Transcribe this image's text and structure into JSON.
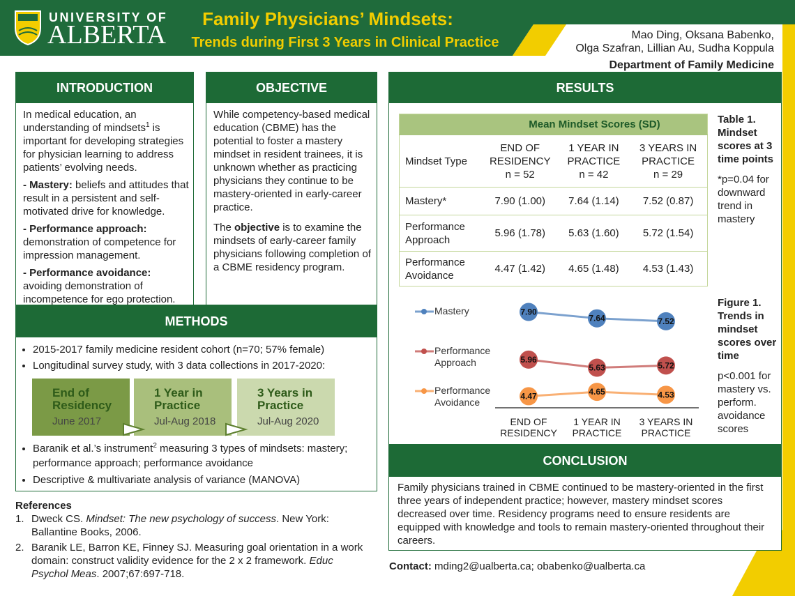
{
  "header": {
    "university": "UNIVERSITY OF",
    "name": "ALBERTA",
    "title": "Family Physicians’ Mindsets:",
    "subtitle": "Trends during First 3 Years in Clinical Practice",
    "authors": [
      "Mao Ding, Oksana Babenko,",
      "Olga Szafran, Lillian Au, Sudha Koppula"
    ],
    "department": "Department of Family Medicine"
  },
  "introduction": {
    "heading": "INTRODUCTION",
    "lead": {
      "before": "In medical education, an understanding of mindsets",
      "sup": "1",
      "after": " is important for developing strategies for physician learning to address patients’ evolving needs."
    },
    "items": [
      {
        "term": "- Mastery:",
        "text": "beliefs and attitudes that result in a persistent and self-motivated drive for knowledge."
      },
      {
        "term": "- Performance approach:",
        "text": "demonstration of competence for impression management."
      },
      {
        "term": "- Performance avoidance:",
        "text": "avoiding demonstration of incompetence for ego protection."
      }
    ]
  },
  "objective": {
    "heading": "OBJECTIVE",
    "paragraph": "While competency-based medical education (CBME) has the potential to foster a mastery mindset in resident trainees, it is unknown whether as practicing physicians they continue to be mastery-oriented in early-career practice.",
    "aim": {
      "before": "The ",
      "bold": "objective",
      "after": " is to examine the mindsets of early-career family physicians following completion of a CBME residency program."
    }
  },
  "methods": {
    "heading": "METHODS",
    "bullets": [
      "2015-2017 family medicine resident cohort (n=70; 57% female)",
      "Longitudinal survey study, with 3 data collections in 2017-2020:"
    ],
    "timeline": [
      {
        "label": "End of Residency",
        "date": "June 2017"
      },
      {
        "label": "1 Year in Practice",
        "date": "Jul-Aug 2018"
      },
      {
        "label": "3 Years in Practice",
        "date": "Jul-Aug 2020"
      }
    ],
    "instrument": {
      "before": "Baranik et al.’s instrument",
      "sup": "2",
      "after": " measuring 3 types of mindsets: mastery; performance approach; performance avoidance"
    },
    "analysis": "Descriptive & multivariate analysis of variance (MANOVA)"
  },
  "references": {
    "heading": "References",
    "items": [
      {
        "number": "1.",
        "authors": "Dweck CS. ",
        "title": "Mindset: The new psychology of success",
        "rest": ". New York: Ballantine Books, 2006."
      },
      {
        "number": "2.",
        "authors": "Baranik LE, Barron KE, Finney SJ. Measuring goal orientation in a work domain: construct validity evidence for the 2 x 2 framework. ",
        "title": "Educ Psychol Meas",
        "rest": ". 2007;67:697-718."
      }
    ]
  },
  "results": {
    "heading": "RESULTS",
    "table": {
      "group_header": "Mean Mindset Scores (SD)",
      "first_column": "Mindset Type",
      "columns": [
        {
          "name": "END OF RESIDENCY",
          "n": "n = 52"
        },
        {
          "name": "1 YEAR IN PRACTICE",
          "n": "n = 42"
        },
        {
          "name": "3 YEARS IN PRACTICE",
          "n": "n = 29"
        }
      ],
      "rows": [
        [
          "Mastery*",
          "7.90 (1.00)",
          "7.64 (1.14)",
          "7.52 (0.87)"
        ],
        [
          "Performance Approach",
          "5.96 (1.78)",
          "5.63 (1.60)",
          "5.72 (1.54)"
        ],
        [
          "Performance Avoidance",
          "4.47 (1.42)",
          "4.65 (1.48)",
          "4.53 (1.43)"
        ]
      ]
    },
    "table_caption": {
      "label": "Table 1.",
      "text": "Mindset scores at 3 time points",
      "note": "*p=0.04 for downward trend in mastery"
    },
    "chart_data": {
      "type": "line",
      "categories": [
        "END OF RESIDENCY",
        "1 YEAR IN PRACTICE",
        "3 YEARS IN PRACTICE"
      ],
      "ylim": [
        4,
        8
      ],
      "series": [
        {
          "name": "Mastery",
          "color": "#4f81bd",
          "values": [
            7.9,
            7.64,
            7.52
          ],
          "value_labels": [
            "7.90",
            "7.64",
            "7.52"
          ]
        },
        {
          "name": "Performance Approach",
          "color": "#c0504d",
          "values": [
            5.96,
            5.63,
            5.72
          ],
          "value_labels": [
            "5.96",
            "5.63",
            "5.72"
          ]
        },
        {
          "name": "Performance Avoidance",
          "color": "#f79646",
          "values": [
            4.47,
            4.65,
            4.53
          ],
          "value_labels": [
            "4.47",
            "4.65",
            "4.53"
          ]
        }
      ]
    },
    "figure_caption": {
      "label": "Figure 1.",
      "text": "Trends in mindset scores over time",
      "note": "p<0.001 for mastery vs. perform. avoidance scores"
    }
  },
  "conclusion": {
    "heading": "CONCLUSION",
    "text": "Family physicians trained in CBME continued to be mastery-oriented in the first three years of independent practice; however, mastery mindset scores decreased over time. Residency programs need to ensure residents are equipped with knowledge and tools to remain mastery-oriented throughout their careers."
  },
  "contact": {
    "label": "Contact:",
    "text": "mding2@ualberta.ca; obabenko@ualberta.ca"
  }
}
